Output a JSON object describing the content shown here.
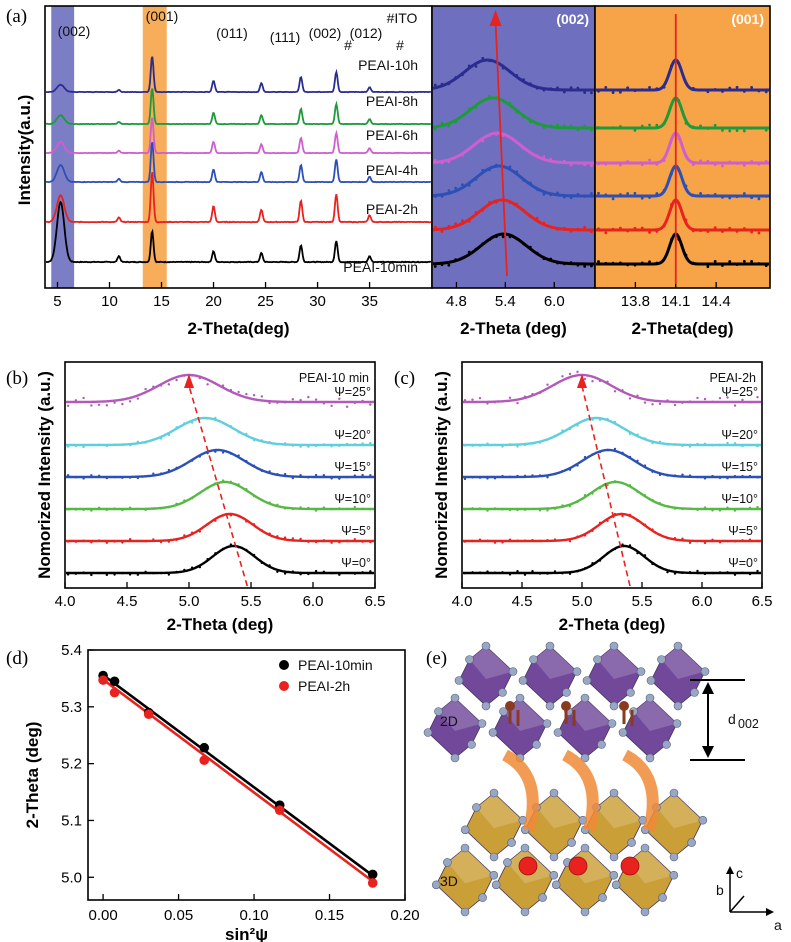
{
  "panels": {
    "a": "(a)",
    "b": "(b)",
    "c": "(c)",
    "d": "(d)",
    "e": "(e)"
  },
  "chart_data": [
    {
      "id": "a-main",
      "type": "line",
      "xlabel": "2-Theta(deg)",
      "ylabel": "Intensity(a.u.)",
      "xlim": [
        3.8,
        41
      ],
      "xticks": [
        5,
        10,
        15,
        20,
        25,
        30,
        35
      ],
      "highlight_regions": [
        {
          "range": [
            4.4,
            6.6
          ],
          "color": "#6e70bf"
        },
        {
          "range": [
            13.2,
            15.5
          ],
          "color": "#f6a447"
        }
      ],
      "peak_labels": [
        "(002)",
        "(001)",
        "(011)",
        "(111)",
        "(002)",
        "(012)",
        "#",
        "#",
        "#ITO"
      ],
      "series": [
        {
          "name": "PEAI-10min",
          "color": "#000000"
        },
        {
          "name": "PEAI-2h",
          "color": "#e8221f"
        },
        {
          "name": "PEAI-4h",
          "color": "#2c50b6"
        },
        {
          "name": "PEAI-6h",
          "color": "#cf5ed0"
        },
        {
          "name": "PEAI-8h",
          "color": "#1e9a3c"
        },
        {
          "name": "PEAI-10h",
          "color": "#2a2d8f"
        }
      ],
      "peaks": [
        {
          "x": 5.3,
          "h": [
            1.0,
            0.48,
            0.38,
            0.28,
            0.22,
            0.18
          ]
        },
        {
          "x": 10.9,
          "h": [
            0.1,
            0.08,
            0.07,
            0.06,
            0.05,
            0.05
          ]
        },
        {
          "x": 14.1,
          "h": [
            0.52,
            0.9,
            0.9,
            0.9,
            0.9,
            0.9
          ]
        },
        {
          "x": 20.0,
          "h": [
            0.18,
            0.28,
            0.28,
            0.28,
            0.28,
            0.28
          ]
        },
        {
          "x": 24.6,
          "h": [
            0.15,
            0.22,
            0.22,
            0.22,
            0.22,
            0.22
          ]
        },
        {
          "x": 28.4,
          "h": [
            0.28,
            0.38,
            0.38,
            0.38,
            0.38,
            0.38
          ]
        },
        {
          "x": 31.8,
          "h": [
            0.35,
            0.5,
            0.5,
            0.5,
            0.5,
            0.5
          ]
        },
        {
          "x": 35.0,
          "h": [
            0.1,
            0.12,
            0.12,
            0.12,
            0.12,
            0.12
          ]
        }
      ]
    },
    {
      "id": "a-zoom-002",
      "type": "line",
      "title": "(002)",
      "xlabel": "2-Theta (deg)",
      "xlim": [
        4.5,
        6.5
      ],
      "xticks": [
        4.8,
        5.4,
        6.0
      ],
      "background": "#6e70bf",
      "series": [
        {
          "name": "PEAI-10min",
          "center": 5.38,
          "color": "#000000"
        },
        {
          "name": "PEAI-2h",
          "center": 5.36,
          "color": "#e8221f"
        },
        {
          "name": "PEAI-4h",
          "center": 5.32,
          "color": "#2c50b6"
        },
        {
          "name": "PEAI-6h",
          "center": 5.3,
          "color": "#cf5ed0"
        },
        {
          "name": "PEAI-8h",
          "center": 5.25,
          "color": "#1e9a3c"
        },
        {
          "name": "PEAI-10h",
          "center": 5.18,
          "color": "#2a2d8f"
        }
      ],
      "arrow": {
        "from": 5.42,
        "to": 5.28
      }
    },
    {
      "id": "a-zoom-001",
      "type": "line",
      "title": "(001)",
      "xlabel": "2-Theta(deg)",
      "xlim": [
        13.5,
        14.8
      ],
      "xticks": [
        13.8,
        14.1,
        14.4
      ],
      "background": "#f6a447",
      "series": [
        {
          "name": "PEAI-10min",
          "center": 14.1,
          "color": "#000000"
        },
        {
          "name": "PEAI-2h",
          "center": 14.1,
          "color": "#e8221f"
        },
        {
          "name": "PEAI-4h",
          "center": 14.1,
          "color": "#2c50b6"
        },
        {
          "name": "PEAI-6h",
          "center": 14.1,
          "color": "#cf5ed0"
        },
        {
          "name": "PEAI-8h",
          "center": 14.1,
          "color": "#1e9a3c"
        },
        {
          "name": "PEAI-10h",
          "center": 14.1,
          "color": "#2a2d8f"
        }
      ],
      "marker_x": 14.1
    },
    {
      "id": "b",
      "type": "line",
      "title": "PEAI-10 min",
      "xlabel": "2-Theta (deg)",
      "ylabel": "Nomorized Intensity (a.u.)",
      "xlim": [
        4.0,
        6.5
      ],
      "xticks": [
        4.0,
        4.5,
        5.0,
        5.5,
        6.0,
        6.5
      ],
      "series": [
        {
          "name": "Ψ=0°",
          "center": 5.36,
          "color": "#000000"
        },
        {
          "name": "Ψ=5°",
          "center": 5.33,
          "color": "#e8221f"
        },
        {
          "name": "Ψ=10°",
          "center": 5.29,
          "color": "#55b944"
        },
        {
          "name": "Ψ=15°",
          "center": 5.23,
          "color": "#2c50b6"
        },
        {
          "name": "Ψ=20°",
          "center": 5.13,
          "color": "#5fcfdc"
        },
        {
          "name": "Ψ=25°",
          "center": 5.0,
          "color": "#b25ab9"
        }
      ],
      "arrow": {
        "from": 5.47,
        "to": 5.0
      }
    },
    {
      "id": "c",
      "type": "line",
      "title": "PEAI-2h",
      "xlabel": "2-Theta (deg)",
      "ylabel": "Nomorized Intensity (a.u.)",
      "xlim": [
        4.0,
        6.5
      ],
      "xticks": [
        4.0,
        4.5,
        5.0,
        5.5,
        6.0,
        6.5
      ],
      "series": [
        {
          "name": "Ψ=0°",
          "center": 5.35,
          "color": "#000000"
        },
        {
          "name": "Ψ=5°",
          "center": 5.33,
          "color": "#e8221f"
        },
        {
          "name": "Ψ=10°",
          "center": 5.28,
          "color": "#55b944"
        },
        {
          "name": "Ψ=15°",
          "center": 5.22,
          "color": "#2c50b6"
        },
        {
          "name": "Ψ=20°",
          "center": 5.12,
          "color": "#5fcfdc"
        },
        {
          "name": "Ψ=25°",
          "center": 5.0,
          "color": "#b25ab9"
        }
      ],
      "arrow": {
        "from": 5.4,
        "to": 5.0
      }
    },
    {
      "id": "d",
      "type": "scatter",
      "xlabel": "sin²ψ",
      "ylabel": "2-Theta (deg)",
      "xlim": [
        -0.01,
        0.2
      ],
      "ylim": [
        4.96,
        5.4
      ],
      "xticks": [
        0.0,
        0.05,
        0.1,
        0.15,
        0.2
      ],
      "yticks": [
        5.0,
        5.1,
        5.2,
        5.3,
        5.4
      ],
      "legend": "top-right",
      "series": [
        {
          "name": "PEAI-10min",
          "color": "#000000",
          "x": [
            0.0,
            0.0076,
            0.0302,
            0.067,
            0.117,
            0.1786
          ],
          "y": [
            5.355,
            5.345,
            5.29,
            5.228,
            5.127,
            5.005
          ],
          "fit": [
            5.356,
            5.003
          ]
        },
        {
          "name": "PEAI-2h",
          "color": "#e8221f",
          "x": [
            0.0,
            0.0076,
            0.0302,
            0.067,
            0.117,
            0.1786
          ],
          "y": [
            5.347,
            5.325,
            5.287,
            5.206,
            5.118,
            4.99
          ],
          "fit": [
            5.348,
            4.993
          ]
        }
      ]
    }
  ],
  "diagram_e": {
    "labels": {
      "layer_2d": "2D",
      "layer_3d": "3D",
      "spacing": "d",
      "spacing_sub": "002"
    },
    "axes": {
      "a": "a",
      "b": "b",
      "c": "c"
    },
    "colors": {
      "octa_2d": "#6a3f95",
      "octa_3d": "#c99a2e",
      "atom": "#9aa7c4",
      "cation": "#e8221f",
      "arrow": "#f08a36",
      "organic": "#8a3a1f"
    }
  }
}
